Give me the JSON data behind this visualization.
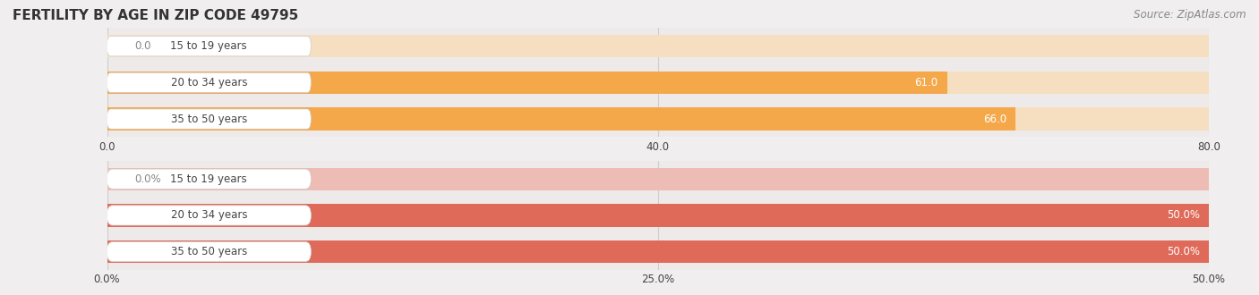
{
  "title": "FERTILITY BY AGE IN ZIP CODE 49795",
  "source": "Source: ZipAtlas.com",
  "background_color": "#f0eeee",
  "chart_bg_color": "#eeeaea",
  "top_chart": {
    "categories": [
      "15 to 19 years",
      "20 to 34 years",
      "35 to 50 years"
    ],
    "values": [
      0.0,
      61.0,
      66.0
    ],
    "bar_color": "#f5a84a",
    "bar_bg_color": "#f5dfc0",
    "xlim": [
      0,
      80
    ],
    "xticks": [
      0.0,
      40.0,
      80.0
    ],
    "xtick_labels": [
      "0.0",
      "40.0",
      "80.0"
    ],
    "value_labels": [
      "0.0",
      "61.0",
      "66.0"
    ]
  },
  "bottom_chart": {
    "categories": [
      "15 to 19 years",
      "20 to 34 years",
      "35 to 50 years"
    ],
    "values": [
      0.0,
      50.0,
      50.0
    ],
    "bar_color": "#e06a5a",
    "bar_bg_color": "#edbdb5",
    "xlim": [
      0,
      50
    ],
    "xticks": [
      0.0,
      25.0,
      50.0
    ],
    "xtick_labels": [
      "0.0%",
      "25.0%",
      "50.0%"
    ],
    "value_labels": [
      "0.0%",
      "50.0%",
      "50.0%"
    ]
  },
  "label_color": "#444444",
  "value_color_outside": "#888888",
  "bar_height": 0.62,
  "label_fontsize": 8.5,
  "value_fontsize": 8.5,
  "tick_fontsize": 8.5,
  "title_fontsize": 11,
  "source_fontsize": 8.5
}
